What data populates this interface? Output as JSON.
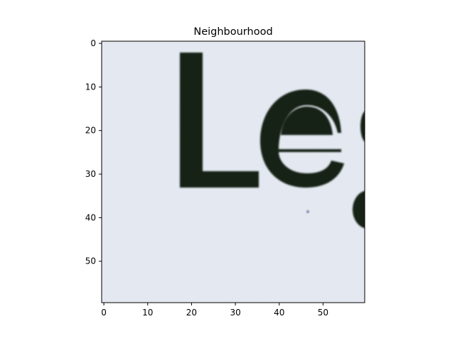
{
  "title": "Neighbourhood",
  "image": {
    "description_free": true,
    "letters": [
      "L",
      "e"
    ],
    "background_color": "#dde2ec",
    "ink_color": "#142018"
  },
  "axes": {
    "x": {
      "range": [
        -0.5,
        59.5
      ],
      "ticks": [
        0,
        10,
        20,
        30,
        40,
        50
      ]
    },
    "y": {
      "range": [
        -0.5,
        59.5
      ],
      "ticks": [
        0,
        10,
        20,
        30,
        40,
        50
      ],
      "inverted": true
    }
  }
}
